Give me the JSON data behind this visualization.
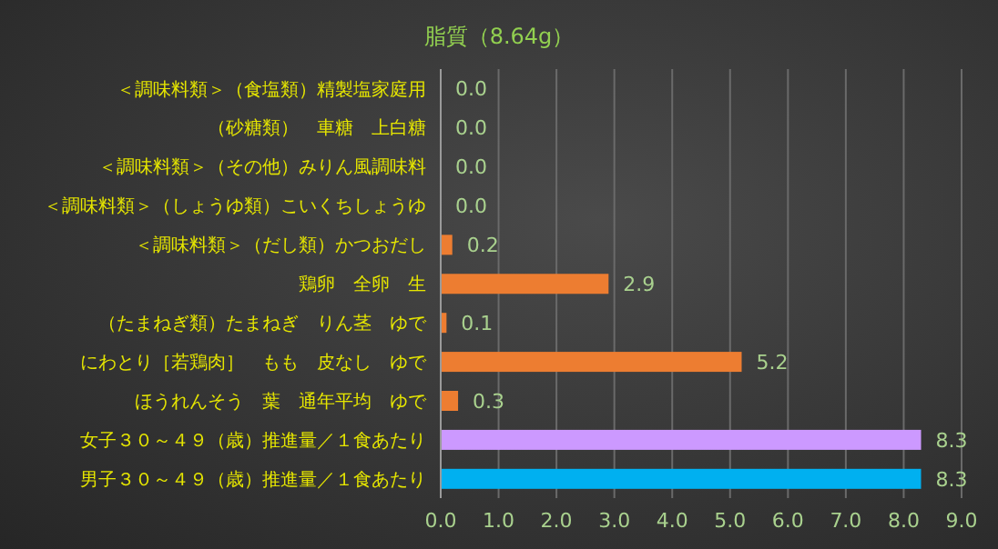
{
  "chart_data": {
    "type": "bar",
    "orientation": "horizontal",
    "title": "脂質（8.64g）",
    "categories": [
      "＜調味料類＞（食塩類）精製塩家庭用",
      "（砂糖類）　車糖　上白糖",
      "＜調味料類＞（その他）みりん風調味料",
      "＜調味料類＞（しょうゆ類）こいくちしょうゆ",
      "＜調味料類＞（だし類）かつおだし",
      "鶏卵　全卵　生",
      "（たまねぎ類）たまねぎ　りん茎　ゆで",
      "にわとり［若鶏肉］　もも　皮なし　ゆで",
      "ほうれんそう　葉　通年平均　ゆで",
      "女子３０～４９（歳）推進量／１食あたり",
      "男子３０～４９（歳）推進量／１食あたり"
    ],
    "values": [
      0,
      0,
      0,
      0,
      0.2,
      2.9,
      0.1,
      5.2,
      0.3,
      8.3,
      8.3
    ],
    "value_labels": [
      "0.0",
      "0.0",
      "0.0",
      "0.0",
      "0.2",
      "2.9",
      "0.1",
      "5.2",
      "0.3",
      "8.3",
      "8.3"
    ],
    "colors": [
      "#ed7d31",
      "#ed7d31",
      "#ed7d31",
      "#ed7d31",
      "#ed7d31",
      "#ed7d31",
      "#ed7d31",
      "#ed7d31",
      "#ed7d31",
      "#cc99ff",
      "#00b0f0"
    ],
    "xlim": [
      0,
      9
    ],
    "xticks": [
      {
        "value": 0,
        "label": "0.0"
      },
      {
        "value": 1,
        "label": "1.0"
      },
      {
        "value": 2,
        "label": "2.0"
      },
      {
        "value": 3,
        "label": "3.0"
      },
      {
        "value": 4,
        "label": "4.0"
      },
      {
        "value": 5,
        "label": "5.0"
      },
      {
        "value": 6,
        "label": "6.0"
      },
      {
        "value": 7,
        "label": "7.0"
      },
      {
        "value": 8,
        "label": "8.0"
      },
      {
        "value": 9,
        "label": "9.0"
      }
    ],
    "grid": "x"
  }
}
